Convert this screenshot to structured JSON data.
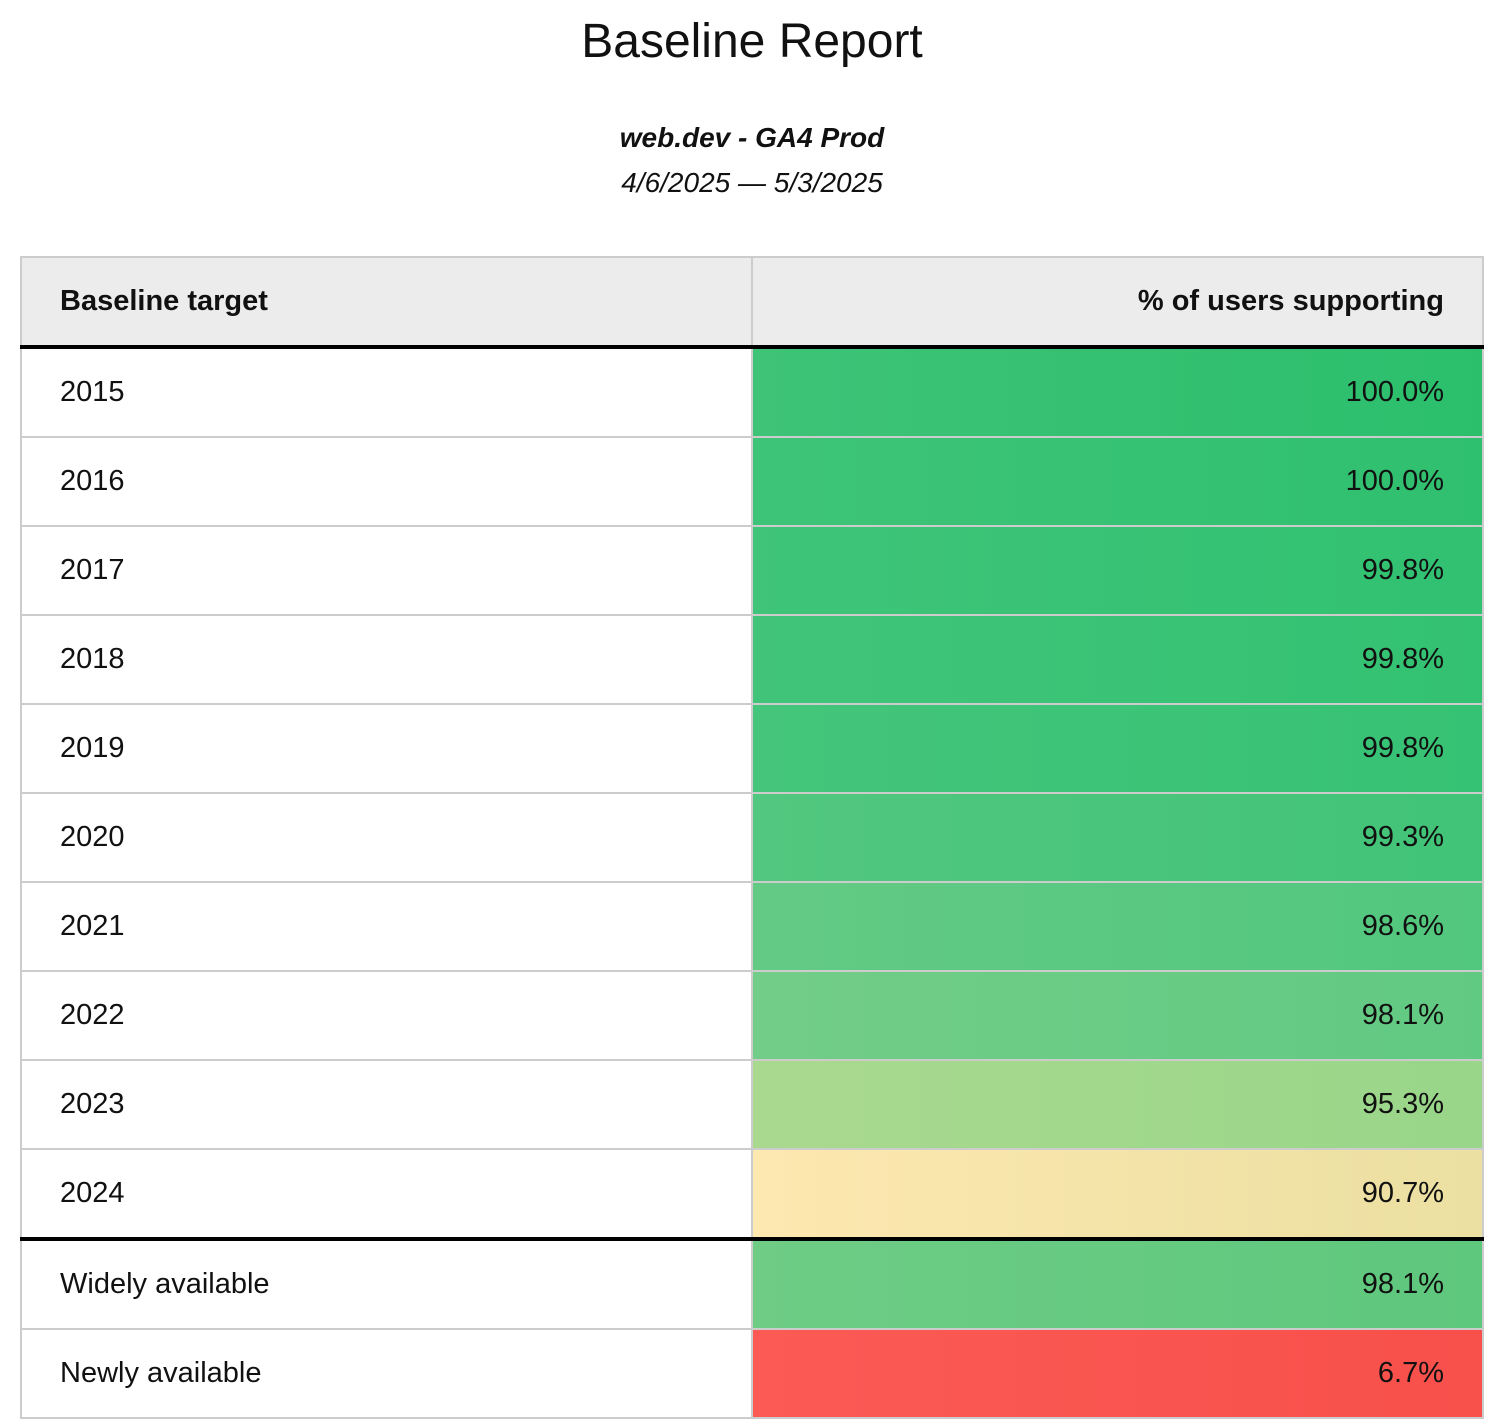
{
  "header": {
    "title": "Baseline Report",
    "property": "web.dev - GA4 Prod",
    "date_range": "4/6/2025 — 5/3/2025"
  },
  "table": {
    "columns": {
      "target": "Baseline target",
      "percent": "% of users supporting"
    },
    "rows": [
      {
        "label": "2015",
        "value": "100.0%",
        "color_from": "#3ec377",
        "color_to": "#2bbf6c"
      },
      {
        "label": "2016",
        "value": "100.0%",
        "color_from": "#3ec478",
        "color_to": "#2fc06f"
      },
      {
        "label": "2017",
        "value": "99.8%",
        "color_from": "#3fc479",
        "color_to": "#31c171"
      },
      {
        "label": "2018",
        "value": "99.8%",
        "color_from": "#41c47a",
        "color_to": "#33c272"
      },
      {
        "label": "2019",
        "value": "99.8%",
        "color_from": "#44c57b",
        "color_to": "#36c274"
      },
      {
        "label": "2020",
        "value": "99.3%",
        "color_from": "#52c77f",
        "color_to": "#41c478"
      },
      {
        "label": "2021",
        "value": "98.6%",
        "color_from": "#63ca84",
        "color_to": "#52c77e"
      },
      {
        "label": "2022",
        "value": "98.1%",
        "color_from": "#72cd88",
        "color_to": "#61ca82"
      },
      {
        "label": "2023",
        "value": "95.3%",
        "color_from": "#a9d98f",
        "color_to": "#99d689"
      },
      {
        "label": "2024",
        "value": "90.7%",
        "color_from": "#fde8b0",
        "color_to": "#ebdfa1"
      },
      {
        "label": "Widely available",
        "value": "98.1%",
        "color_from": "#6ecc85",
        "color_to": "#5ec87d",
        "divider": true
      },
      {
        "label": "Newly available",
        "value": "6.7%",
        "color_from": "#fb5a55",
        "color_to": "#f8504b"
      }
    ]
  },
  "colors": {
    "header_background": "#ececec",
    "grid_border": "#cccccc",
    "strong_border": "#000000",
    "text": "#111111"
  }
}
